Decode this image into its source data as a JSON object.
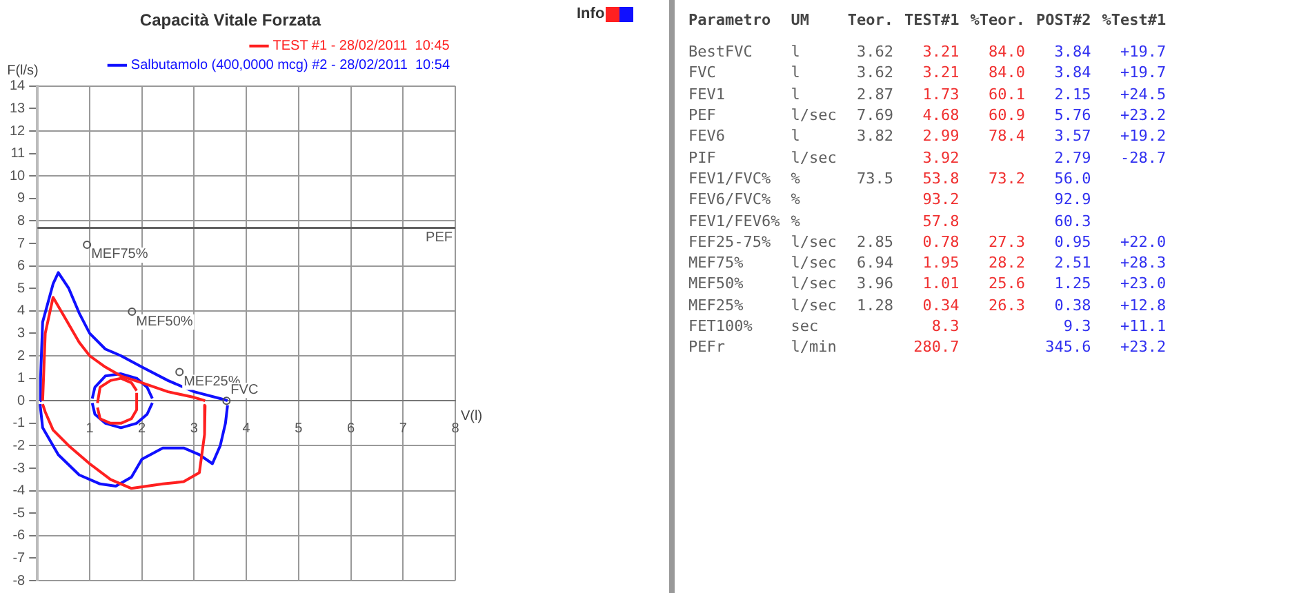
{
  "chart_data": [
    {
      "type": "line",
      "title": "Capacità Vitale Forzata",
      "xlabel": "V(l)",
      "ylabel": "F(l/s)",
      "legend": "top right",
      "grid": true,
      "marker": "none",
      "line_style": "solid",
      "xlim": [
        0,
        8
      ],
      "xticks": [
        {
          "value": 0,
          "label": null
        },
        1,
        2,
        3,
        4,
        5,
        6,
        7,
        8
      ],
      "ylim": [
        -8,
        14
      ],
      "yticks": [
        -8,
        -7,
        -6,
        -5,
        -4,
        -3,
        -2,
        -1,
        0,
        1,
        2,
        3,
        4,
        5,
        6,
        7,
        8,
        9,
        10,
        11,
        12,
        13,
        14
      ],
      "ref_lines": [
        {
          "axis": "y",
          "value": 7.69,
          "label": "PEF",
          "color": "#606060"
        }
      ],
      "annotations": [
        {
          "text": "MEF75%",
          "x": 0.95,
          "y": 6.94
        },
        {
          "text": "MEF50%",
          "x": 1.81,
          "y": 3.96
        },
        {
          "text": "MEF25%",
          "x": 2.72,
          "y": 1.28
        },
        {
          "text": "FVC",
          "x": 3.62,
          "y": 0
        },
        "Info"
      ],
      "series": [
        {
          "name": "TEST #1 - 28/02/2011  10:45",
          "color": "#ff2020",
          "x": [
            0.1,
            0.15,
            0.3,
            0.5,
            0.8,
            1.0,
            1.3,
            1.6,
            2.0,
            2.5,
            3.0,
            3.21
          ],
          "values": [
            0,
            3.0,
            4.6,
            3.8,
            2.6,
            2.0,
            1.5,
            1.1,
            0.8,
            0.4,
            0.15,
            0
          ]
        },
        {
          "color": "#ff2020",
          "x": [
            3.21,
            3.2,
            3.1,
            2.8,
            2.4,
            1.8,
            1.4,
            1.0,
            0.6,
            0.3,
            0.15,
            0.1
          ],
          "values": [
            -0.2,
            -1.5,
            -3.2,
            -3.6,
            -3.7,
            -3.9,
            -3.5,
            -2.8,
            -2.0,
            -1.3,
            -0.5,
            -0.15
          ]
        },
        {
          "color": "#ff2020",
          "x": [
            1.15,
            1.2,
            1.4,
            1.6,
            1.8,
            1.9
          ],
          "values": [
            -0.1,
            0.6,
            0.9,
            1.0,
            0.8,
            0.45
          ]
        },
        {
          "color": "#ff2020",
          "x": [
            1.15,
            1.2,
            1.4,
            1.6,
            1.8,
            1.9,
            1.9
          ],
          "values": [
            -0.3,
            -0.8,
            -1.0,
            -1.0,
            -0.8,
            -0.4,
            0.35
          ]
        },
        {
          "name": "Salbutamolo (400,0000 mcg) #2 - 28/02/2011  10:54",
          "color": "#1010ff",
          "x": [
            0.05,
            0.06,
            0.1,
            0.3,
            0.4,
            0.6,
            0.8,
            1.0,
            1.3,
            1.6,
            2.0,
            2.5,
            3.0,
            3.5,
            3.64
          ],
          "values": [
            0,
            1.0,
            3.5,
            5.2,
            5.7,
            5.0,
            3.9,
            3.0,
            2.3,
            2.0,
            1.5,
            0.9,
            0.4,
            0.1,
            0
          ]
        },
        {
          "color": "#1010ff",
          "x": [
            3.64,
            3.6,
            3.5,
            3.35,
            3.1,
            2.8,
            2.4,
            2.0,
            1.8,
            1.5,
            1.2,
            0.8,
            0.4,
            0.1,
            0.05
          ],
          "values": [
            -0.2,
            -1.0,
            -2.0,
            -2.8,
            -2.4,
            -2.1,
            -2.1,
            -2.6,
            -3.4,
            -3.8,
            -3.7,
            -3.3,
            -2.4,
            -1.2,
            -0.15
          ]
        },
        {
          "color": "#1010ff",
          "x": [
            1.05,
            1.1,
            1.3,
            1.6,
            1.9,
            2.1,
            2.2
          ],
          "values": [
            0.1,
            0.6,
            1.1,
            1.2,
            1.0,
            0.6,
            0.1
          ]
        },
        {
          "color": "#1010ff",
          "x": [
            1.05,
            1.1,
            1.3,
            1.6,
            1.9,
            2.1,
            2.2
          ],
          "values": [
            -0.1,
            -0.6,
            -1.0,
            -1.2,
            -1.0,
            -0.6,
            -0.1
          ]
        }
      ]
    },
    {
      "type": "other",
      "categories": [
        "Parametro",
        "UM",
        "Teor.",
        "TEST#1",
        "%Teor.",
        "POST#2",
        "%Test#1"
      ],
      "colors": [
        "#606060",
        "#606060",
        "#606060",
        "#f03030",
        "#f03030",
        "#3030f0",
        "#3030f0"
      ],
      "y_categories": [
        "BestFVC",
        "FVC",
        "FEV1",
        "PEF",
        "FEV6",
        "PIF",
        "FEV1/FVC%",
        "FEV6/FVC%",
        "FEV1/FEV6%",
        "FEF25-75%",
        "MEF75%",
        "MEF50%",
        "MEF25%",
        "FET100%",
        "PEFr"
      ],
      "cell_labels": [
        [
          "l",
          "3.62",
          "3.21",
          "84.0",
          "3.84",
          "+19.7"
        ],
        [
          "l",
          "3.62",
          "3.21",
          "84.0",
          "3.84",
          "+19.7"
        ],
        [
          "l",
          "2.87",
          "1.73",
          "60.1",
          "2.15",
          "+24.5"
        ],
        [
          "l/sec",
          "7.69",
          "4.68",
          "60.9",
          "5.76",
          "+23.2"
        ],
        [
          "l",
          "3.82",
          "2.99",
          "78.4",
          "3.57",
          "+19.2"
        ],
        [
          "l/sec",
          null,
          "3.92",
          null,
          "2.79",
          "-28.7"
        ],
        [
          "%",
          "73.5",
          "53.8",
          "73.2",
          "56.0",
          null
        ],
        [
          "%",
          null,
          "93.2",
          null,
          "92.9",
          null
        ],
        [
          "%",
          null,
          "57.8",
          null,
          "60.3",
          null
        ],
        [
          "l/sec",
          "2.85",
          "0.78",
          "27.3",
          "0.95",
          "+22.0"
        ],
        [
          "l/sec",
          "6.94",
          "1.95",
          "28.2",
          "2.51",
          "+28.3"
        ],
        [
          "l/sec",
          "3.96",
          "1.01",
          "25.6",
          "1.25",
          "+23.0"
        ],
        [
          "l/sec",
          "1.28",
          "0.34",
          "26.3",
          "0.38",
          "+12.8"
        ],
        [
          "sec",
          null,
          "8.3",
          null,
          "9.3",
          "+11.1"
        ],
        [
          "l/min",
          null,
          "280.7",
          null,
          "345.6",
          "+23.2"
        ]
      ]
    }
  ]
}
